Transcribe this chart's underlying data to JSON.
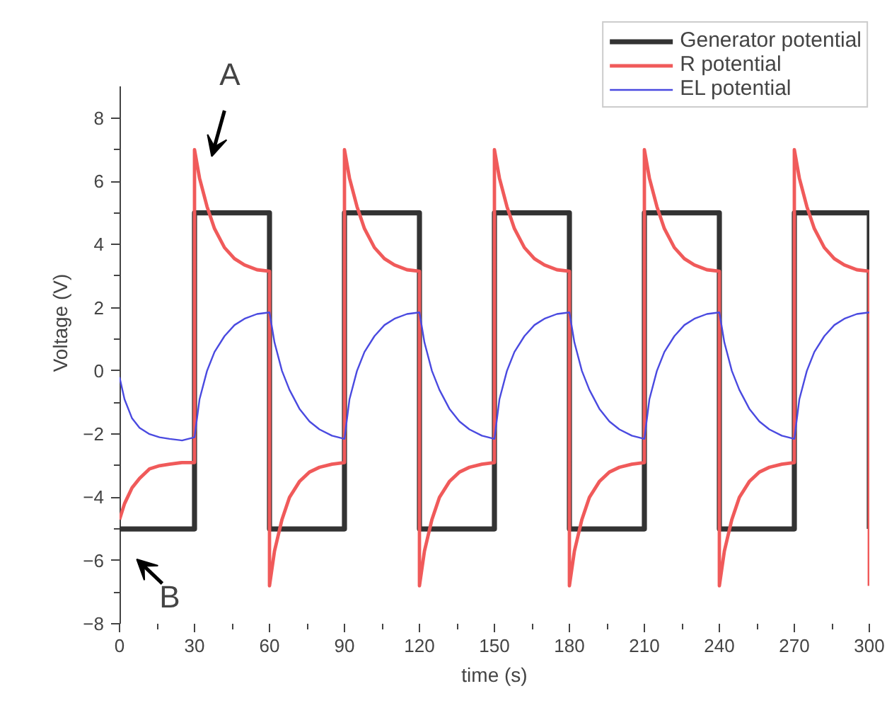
{
  "chart_data": {
    "type": "line",
    "xlabel": "time (s)",
    "ylabel": "Voltage (V)",
    "xlim": [
      0,
      300
    ],
    "ylim": [
      -8,
      9
    ],
    "xticks": [
      0,
      30,
      60,
      90,
      120,
      150,
      180,
      210,
      240,
      270,
      300
    ],
    "yticks": [
      -8,
      -6,
      -4,
      -2,
      0,
      2,
      4,
      6,
      8
    ],
    "grid": false,
    "legend": "top right",
    "marker": "none",
    "line_style": "solid",
    "annotations": [
      "A",
      "B"
    ],
    "series": [
      {
        "name": "Generator potential",
        "color": "#333333",
        "x": [
          0,
          30,
          30,
          60,
          60,
          90,
          90,
          120,
          120,
          150,
          150,
          180,
          180,
          210,
          210,
          240,
          240,
          270,
          270,
          300,
          300
        ],
        "values": [
          -5,
          -5,
          5,
          5,
          -5,
          -5,
          5,
          5,
          -5,
          -5,
          5,
          5,
          -5,
          -5,
          5,
          5,
          -5,
          -5,
          5,
          5,
          -5
        ]
      },
      {
        "name": "R potential",
        "color": "#f05a5a",
        "x": [
          0,
          2,
          5,
          8,
          12,
          16,
          20,
          25,
          30,
          30,
          32,
          35,
          38,
          42,
          46,
          50,
          55,
          60,
          60,
          62,
          65,
          68,
          72,
          76,
          80,
          85,
          90,
          90,
          92,
          95,
          98,
          102,
          106,
          110,
          115,
          120,
          120,
          122,
          125,
          128,
          132,
          136,
          140,
          145,
          150,
          150,
          152,
          155,
          158,
          162,
          166,
          170,
          175,
          180,
          180,
          182,
          185,
          188,
          192,
          196,
          200,
          205,
          210,
          210,
          212,
          215,
          218,
          222,
          226,
          230,
          235,
          240,
          240,
          242,
          245,
          248,
          252,
          256,
          260,
          265,
          270,
          270,
          272,
          275,
          278,
          282,
          286,
          290,
          295,
          300,
          300
        ],
        "values": [
          -4.7,
          -4.2,
          -3.7,
          -3.4,
          -3.1,
          -3.0,
          -2.95,
          -2.9,
          -2.9,
          7.0,
          6.1,
          5.2,
          4.5,
          3.9,
          3.55,
          3.35,
          3.2,
          3.15,
          -6.8,
          -5.7,
          -4.7,
          -4.0,
          -3.5,
          -3.2,
          -3.05,
          -2.95,
          -2.9,
          7.0,
          6.1,
          5.2,
          4.5,
          3.9,
          3.55,
          3.35,
          3.2,
          3.15,
          -6.8,
          -5.7,
          -4.7,
          -4.0,
          -3.5,
          -3.2,
          -3.05,
          -2.95,
          -2.9,
          7.0,
          6.1,
          5.2,
          4.5,
          3.9,
          3.55,
          3.35,
          3.2,
          3.15,
          -6.8,
          -5.7,
          -4.7,
          -4.0,
          -3.5,
          -3.2,
          -3.05,
          -2.95,
          -2.9,
          7.0,
          6.1,
          5.2,
          4.5,
          3.9,
          3.55,
          3.35,
          3.2,
          3.15,
          -6.8,
          -5.7,
          -4.7,
          -4.0,
          -3.5,
          -3.2,
          -3.05,
          -2.95,
          -2.9,
          7.0,
          6.1,
          5.2,
          4.5,
          3.9,
          3.55,
          3.35,
          3.2,
          3.15,
          -6.8
        ]
      },
      {
        "name": "EL potential",
        "color": "#4a4ae0",
        "x": [
          0,
          2,
          5,
          8,
          12,
          16,
          20,
          25,
          30,
          32,
          35,
          38,
          42,
          46,
          50,
          55,
          60,
          62,
          65,
          68,
          72,
          76,
          80,
          85,
          90,
          92,
          95,
          98,
          102,
          106,
          110,
          115,
          120,
          122,
          125,
          128,
          132,
          136,
          140,
          145,
          150,
          152,
          155,
          158,
          162,
          166,
          170,
          175,
          180,
          182,
          185,
          188,
          192,
          196,
          200,
          205,
          210,
          212,
          215,
          218,
          222,
          226,
          230,
          235,
          240,
          242,
          245,
          248,
          252,
          256,
          260,
          265,
          270,
          272,
          275,
          278,
          282,
          286,
          290,
          295,
          300
        ],
        "values": [
          -0.2,
          -0.9,
          -1.5,
          -1.8,
          -2.0,
          -2.1,
          -2.15,
          -2.2,
          -2.1,
          -0.9,
          0.0,
          0.6,
          1.1,
          1.45,
          1.65,
          1.8,
          1.85,
          0.9,
          0.0,
          -0.6,
          -1.2,
          -1.6,
          -1.85,
          -2.05,
          -2.15,
          -0.9,
          0.0,
          0.6,
          1.1,
          1.45,
          1.65,
          1.8,
          1.85,
          0.9,
          0.0,
          -0.6,
          -1.2,
          -1.6,
          -1.85,
          -2.05,
          -2.15,
          -0.9,
          0.0,
          0.6,
          1.1,
          1.45,
          1.65,
          1.8,
          1.85,
          0.9,
          0.0,
          -0.6,
          -1.2,
          -1.6,
          -1.85,
          -2.05,
          -2.15,
          -0.9,
          0.0,
          0.6,
          1.1,
          1.45,
          1.65,
          1.8,
          1.85,
          0.9,
          0.0,
          -0.6,
          -1.2,
          -1.6,
          -1.85,
          -2.05,
          -2.15,
          -0.9,
          0.0,
          0.6,
          1.1,
          1.45,
          1.65,
          1.8,
          1.85
        ]
      }
    ]
  }
}
